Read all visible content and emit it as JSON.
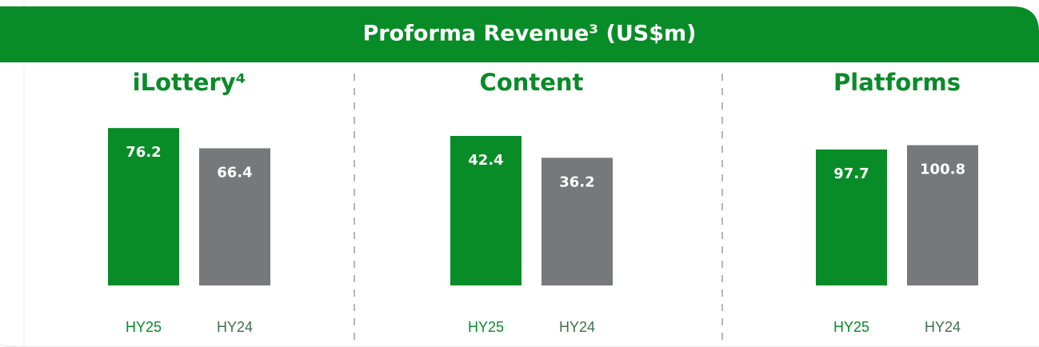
{
  "header": {
    "title": "Proforma Revenue³ (US$m)"
  },
  "chart_data": [
    {
      "type": "bar",
      "title": "iLottery⁴",
      "categories": [
        "HY25",
        "HY24"
      ],
      "values": [
        76.2,
        66.4
      ],
      "colors": [
        "#088c27",
        "#76787b"
      ],
      "ylim": [
        0,
        84
      ]
    },
    {
      "type": "bar",
      "title": "Content",
      "categories": [
        "HY25",
        "HY24"
      ],
      "values": [
        42.4,
        36.2
      ],
      "colors": [
        "#088c27",
        "#76787b"
      ],
      "ylim": [
        0,
        49.2
      ]
    },
    {
      "type": "bar",
      "title": "Platforms",
      "categories": [
        "HY25",
        "HY24"
      ],
      "values": [
        97.7,
        100.8
      ],
      "colors": [
        "#088c27",
        "#76787b"
      ],
      "ylim": [
        0,
        124.7
      ]
    }
  ]
}
